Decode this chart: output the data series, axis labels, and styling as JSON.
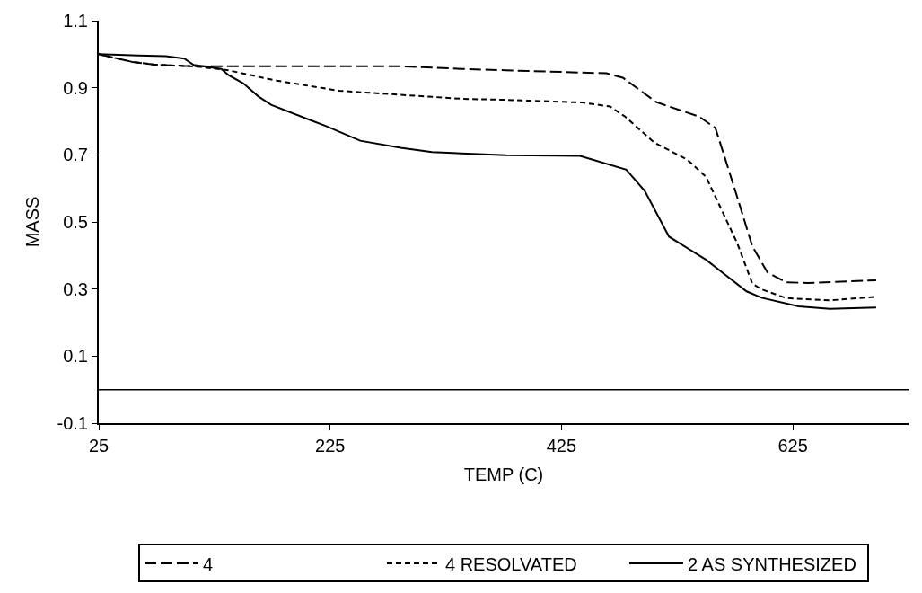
{
  "chart_data": {
    "type": "line",
    "xlabel": "TEMP (C)",
    "ylabel": "MASS",
    "xlim": [
      25,
      725
    ],
    "xticks": [
      25,
      225,
      425,
      625
    ],
    "ylim": [
      -0.1,
      1.1
    ],
    "yticks": [
      -0.1,
      0.1,
      0.3,
      0.5,
      0.7,
      0.9,
      1.1
    ],
    "legend": "bottom",
    "marker": "none",
    "ref_lines": [
      {
        "axis": "y",
        "value": 0,
        "color": "#000000",
        "line_style": "solid"
      }
    ],
    "series": [
      {
        "name": "4",
        "color": "#000000",
        "line_style": "longdash",
        "x": [
          25,
          54,
          73,
          99,
          113,
          286,
          339,
          377,
          464,
          478,
          507,
          544,
          558,
          566,
          577,
          590,
          603,
          619,
          638,
          697
        ],
        "values": [
          1.0,
          0.977,
          0.969,
          0.965,
          0.964,
          0.964,
          0.956,
          0.952,
          0.943,
          0.93,
          0.857,
          0.814,
          0.78,
          0.694,
          0.573,
          0.427,
          0.35,
          0.32,
          0.318,
          0.326
        ]
      },
      {
        "name": "4 RESOLVATED",
        "color": "#000000",
        "line_style": "dashed",
        "x": [
          25,
          54,
          73,
          99,
          113,
          137,
          179,
          233,
          286,
          339,
          377,
          443,
          467,
          480,
          505,
          534,
          550,
          563,
          577,
          590,
          598,
          619,
          657,
          697
        ],
        "values": [
          1.0,
          0.977,
          0.969,
          0.965,
          0.962,
          0.952,
          0.921,
          0.891,
          0.879,
          0.867,
          0.864,
          0.856,
          0.844,
          0.814,
          0.737,
          0.685,
          0.634,
          0.539,
          0.436,
          0.316,
          0.299,
          0.273,
          0.266,
          0.277
        ]
      },
      {
        "name": "2 AS SYNTHESIZED",
        "color": "#000000",
        "line_style": "solid",
        "x": [
          25,
          59,
          83,
          99,
          107,
          131,
          137,
          150,
          163,
          174,
          206,
          222,
          251,
          286,
          313,
          377,
          441,
          481,
          497,
          518,
          550,
          566,
          585,
          598,
          630,
          657,
          697
        ],
        "values": [
          1.0,
          0.996,
          0.994,
          0.987,
          0.968,
          0.956,
          0.938,
          0.913,
          0.874,
          0.849,
          0.806,
          0.785,
          0.742,
          0.721,
          0.708,
          0.699,
          0.697,
          0.656,
          0.592,
          0.456,
          0.387,
          0.344,
          0.293,
          0.274,
          0.248,
          0.241,
          0.245
        ]
      }
    ]
  }
}
